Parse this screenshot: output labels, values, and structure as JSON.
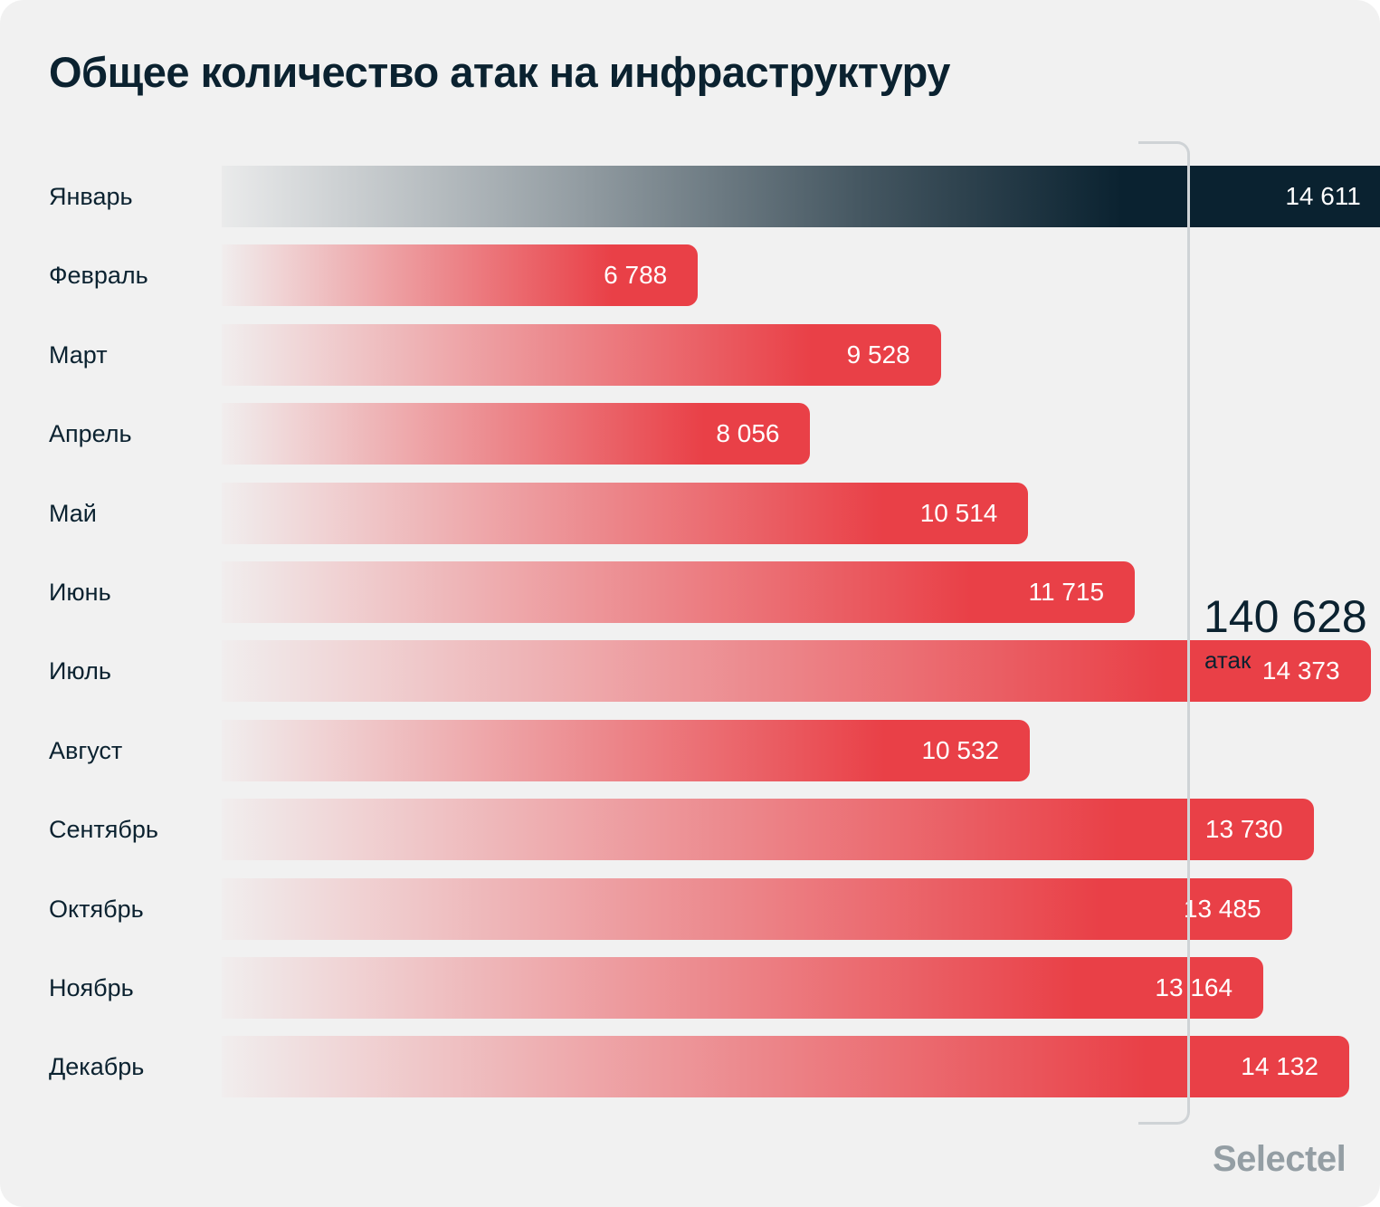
{
  "chart_data": {
    "type": "bar",
    "orientation": "horizontal",
    "title": "Общее количество атак на инфраструктуру",
    "categories": [
      "Январь",
      "Февраль",
      "Март",
      "Апрель",
      "Май",
      "Июнь",
      "Июль",
      "Август",
      "Сентябрь",
      "Октябрь",
      "Ноябрь",
      "Декабрь"
    ],
    "values": [
      14611,
      6788,
      9528,
      8056,
      10514,
      11715,
      14373,
      10532,
      13730,
      13485,
      13164,
      14132
    ],
    "value_labels": [
      "14 611",
      "6 788",
      "9 528",
      "8 056",
      "10 514",
      "11 715",
      "14 373",
      "10 532",
      "13 730",
      "13 485",
      "13 164",
      "14 132"
    ],
    "highlight_index": 0,
    "total": {
      "value": "140 628",
      "unit": "атак"
    },
    "grid": false,
    "colors": {
      "highlight": "#0a2230",
      "bars": "#e94047",
      "background": "#f1f1f1",
      "text": "#0b2230"
    }
  },
  "brand": "Selectel"
}
